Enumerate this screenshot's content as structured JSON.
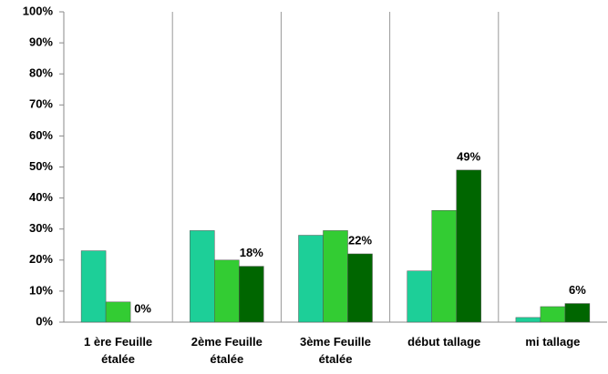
{
  "chart_data": {
    "type": "bar",
    "categories": [
      "1 ère Feuille\nétalée",
      "2ème  Feuille\nétalée",
      "3ème Feuille\nétalée",
      "début tallage",
      "mi tallage"
    ],
    "series": [
      {
        "color": "#1dcf98",
        "values": [
          23,
          29.5,
          28,
          16.5,
          1.5
        ]
      },
      {
        "color": "#33cc33",
        "values": [
          6.5,
          20,
          29.5,
          36,
          5
        ]
      },
      {
        "color": "#006600",
        "values": [
          0,
          18,
          22,
          49,
          6
        ],
        "value_labels": [
          "0%",
          "18%",
          "22%",
          "49%",
          "6%"
        ]
      }
    ],
    "ylim": [
      0,
      100
    ],
    "yticks": [
      {
        "value": 0,
        "label": "0%"
      },
      {
        "value": 10,
        "label": "10%"
      },
      {
        "value": 20,
        "label": "20%"
      },
      {
        "value": 30,
        "label": "30%"
      },
      {
        "value": 40,
        "label": "40%"
      },
      {
        "value": 50,
        "label": "50%"
      },
      {
        "value": 60,
        "label": "60%"
      },
      {
        "value": 70,
        "label": "70%"
      },
      {
        "value": 80,
        "label": "80%"
      },
      {
        "value": 90,
        "label": "90%"
      },
      {
        "value": 100,
        "label": "100%"
      }
    ],
    "grid": false
  }
}
